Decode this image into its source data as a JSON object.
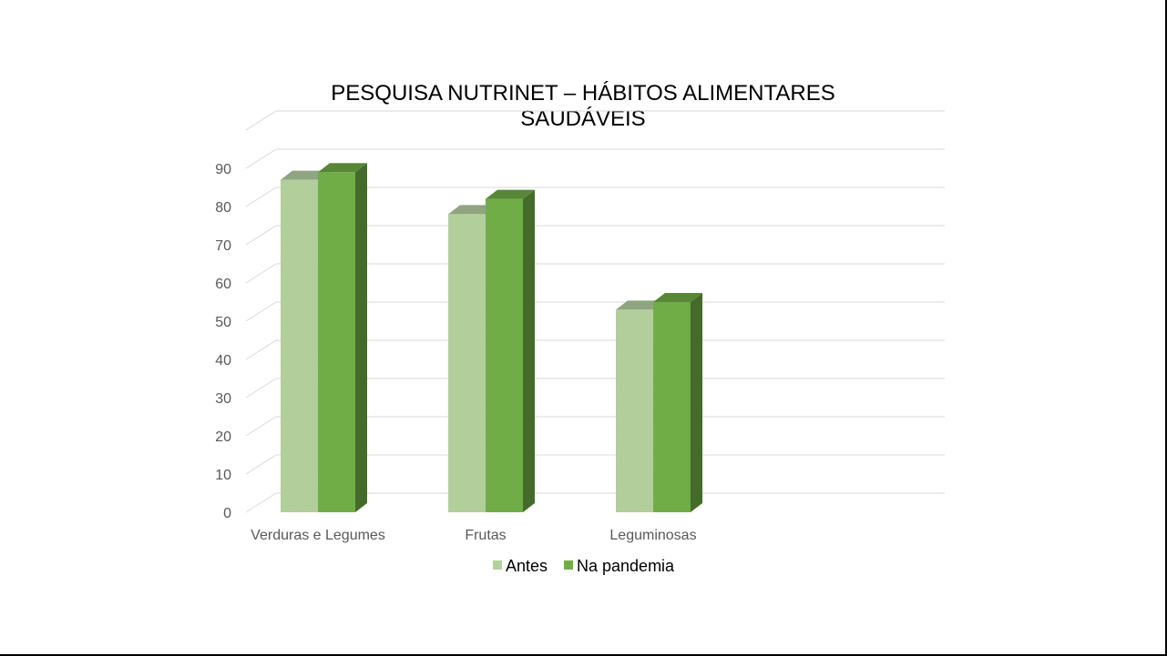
{
  "chart_data": {
    "type": "bar",
    "title_lines": [
      "PESQUISA NUTRINET – HÁBITOS ALIMENTARES",
      "SAUDÁVEIS"
    ],
    "categories": [
      "Verduras e Legumes",
      "Frutas",
      "Leguminosas"
    ],
    "series": [
      {
        "name": "Antes",
        "values": [
          87,
          78,
          53
        ],
        "color": "#b5d19f"
      },
      {
        "name": "Na pandemia",
        "values": [
          89,
          82,
          55
        ],
        "color": "#70ad47"
      }
    ],
    "yticks": [
      "0",
      "10",
      "20",
      "30",
      "40",
      "50",
      "60",
      "70",
      "80",
      "90"
    ],
    "ylim": [
      0,
      90
    ],
    "grid": true,
    "legend": "bottom",
    "style": "3d-column"
  }
}
